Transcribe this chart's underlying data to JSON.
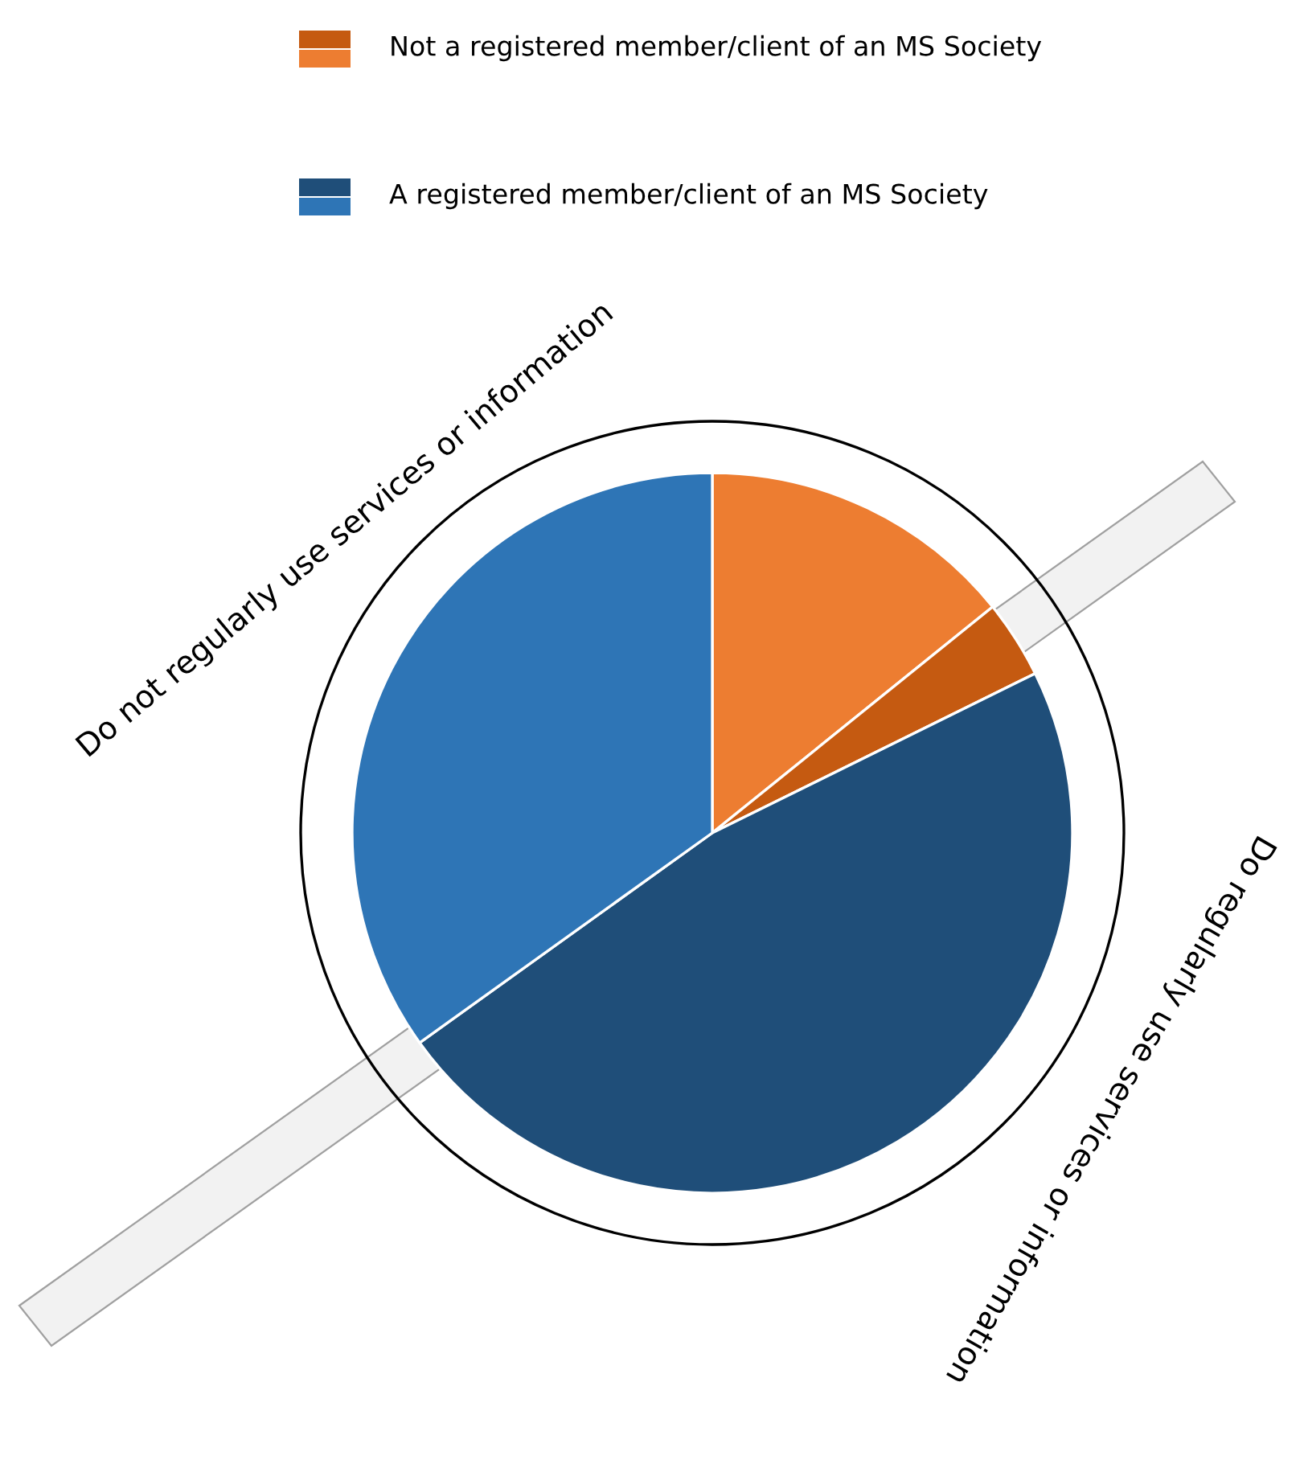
{
  "chart_data": {
    "type": "pie",
    "categories": [
      "Not a registered member/client of an MS Society",
      null,
      "A registered member/client of an MS Society",
      null
    ],
    "values": [
      14.2,
      3.5,
      47.4,
      34.9
    ],
    "colors": [
      "#ed7d31",
      "#c55a11",
      "#1f4e79",
      "#2e75b6"
    ],
    "legend": "top",
    "annotations": [
      "Do not regularly use services or information",
      "Do regularly use services or information"
    ]
  }
}
